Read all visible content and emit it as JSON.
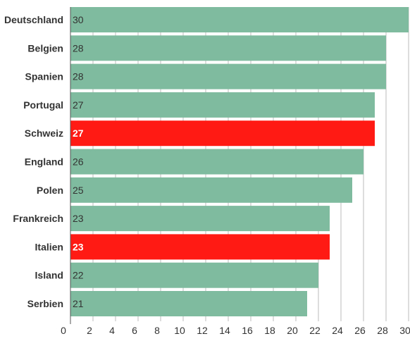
{
  "chart_data": {
    "type": "bar",
    "orientation": "horizontal",
    "title": "",
    "xlabel": "",
    "ylabel": "",
    "categories": [
      "Deutschland",
      "Belgien",
      "Spanien",
      "Portugal",
      "Schweiz",
      "England",
      "Polen",
      "Frankreich",
      "Italien",
      "Island",
      "Serbien"
    ],
    "values": [
      30,
      28,
      28,
      27,
      27,
      26,
      25,
      23,
      23,
      22,
      21
    ],
    "highlighted": [
      false,
      false,
      false,
      false,
      true,
      false,
      false,
      false,
      true,
      false,
      false
    ],
    "xlim": [
      0,
      30
    ],
    "xticks": [
      0,
      2,
      4,
      6,
      8,
      10,
      12,
      14,
      16,
      18,
      20,
      22,
      24,
      26,
      28,
      30
    ],
    "grid": true,
    "colors": {
      "bar": "#7fbb9e",
      "highlight": "#ff1a14",
      "label_default": "#333333",
      "label_highlight": "#ffffff"
    }
  }
}
